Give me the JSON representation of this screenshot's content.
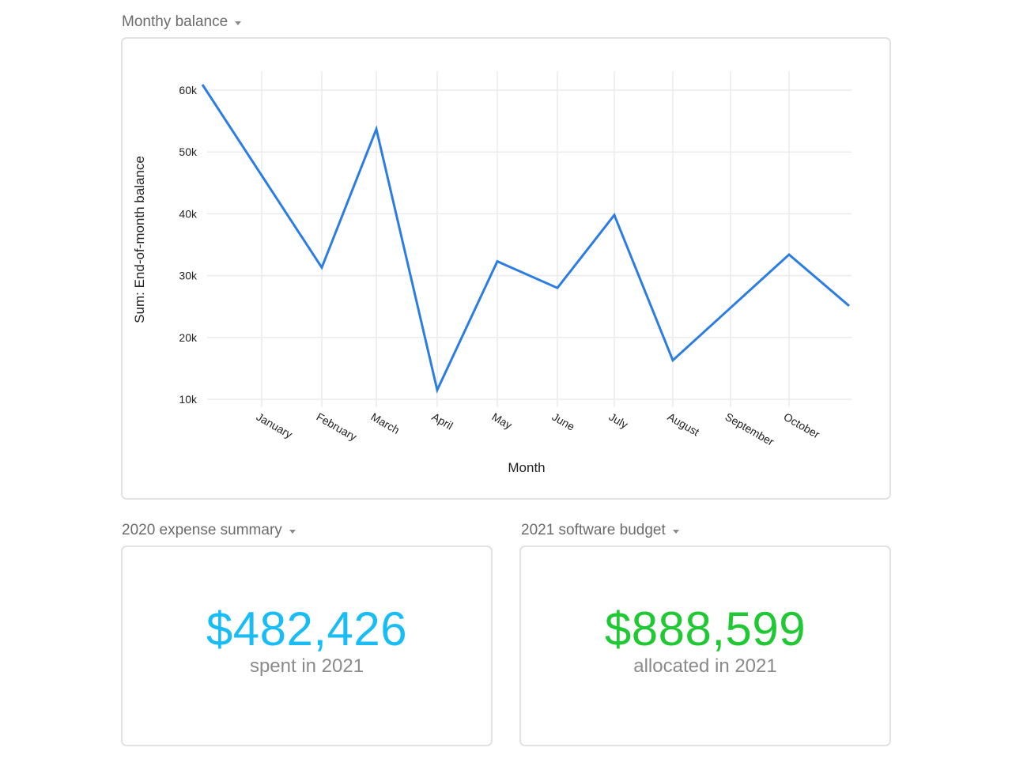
{
  "sections": {
    "chart_title": "Monthy balance",
    "kpi1_title": "2020 expense summary",
    "kpi2_title": "2021 software budget"
  },
  "kpis": [
    {
      "value": "$482,426",
      "caption": "spent in 2021",
      "color": "#19bdf5"
    },
    {
      "value": "$888,599",
      "caption": "allocated in 2021",
      "color": "#20c933"
    }
  ],
  "colors": {
    "line": "#2b7de4",
    "grid": "#ebebeb",
    "border": "#e2e2e2"
  },
  "chart_data": {
    "type": "line",
    "title": "Monthy balance",
    "xlabel": "Month",
    "ylabel": "Sum: End-of-month balance",
    "categories": [
      "",
      "January",
      "February",
      "March",
      "April",
      "May",
      "June",
      "July",
      "August",
      "September",
      "October",
      ""
    ],
    "x_tick_labels": [
      "January",
      "February",
      "March",
      "April",
      "May",
      "June",
      "July",
      "August",
      "September",
      "October"
    ],
    "y_tick_labels": [
      "60k",
      "50k",
      "40k",
      "30k",
      "20k",
      "10k"
    ],
    "y_ticks": [
      60000,
      50000,
      40000,
      30000,
      20000,
      10000
    ],
    "ylim": [
      10000,
      60000
    ],
    "grid": true,
    "legend": null,
    "series": [
      {
        "name": "Sum: End-of-month balance",
        "points": [
          {
            "x": "(start)",
            "y": 60900
          },
          {
            "x": "January",
            "y": 46200
          },
          {
            "x": "February",
            "y": 31300
          },
          {
            "x": "March",
            "y": 53700
          },
          {
            "x": "April",
            "y": 11500
          },
          {
            "x": "May",
            "y": 32300
          },
          {
            "x": "June",
            "y": 28000
          },
          {
            "x": "July",
            "y": 39800
          },
          {
            "x": "August",
            "y": 16300
          },
          {
            "x": "September",
            "y": 24800
          },
          {
            "x": "October",
            "y": 33400
          },
          {
            "x": "(end)",
            "y": 25100
          }
        ]
      }
    ]
  }
}
